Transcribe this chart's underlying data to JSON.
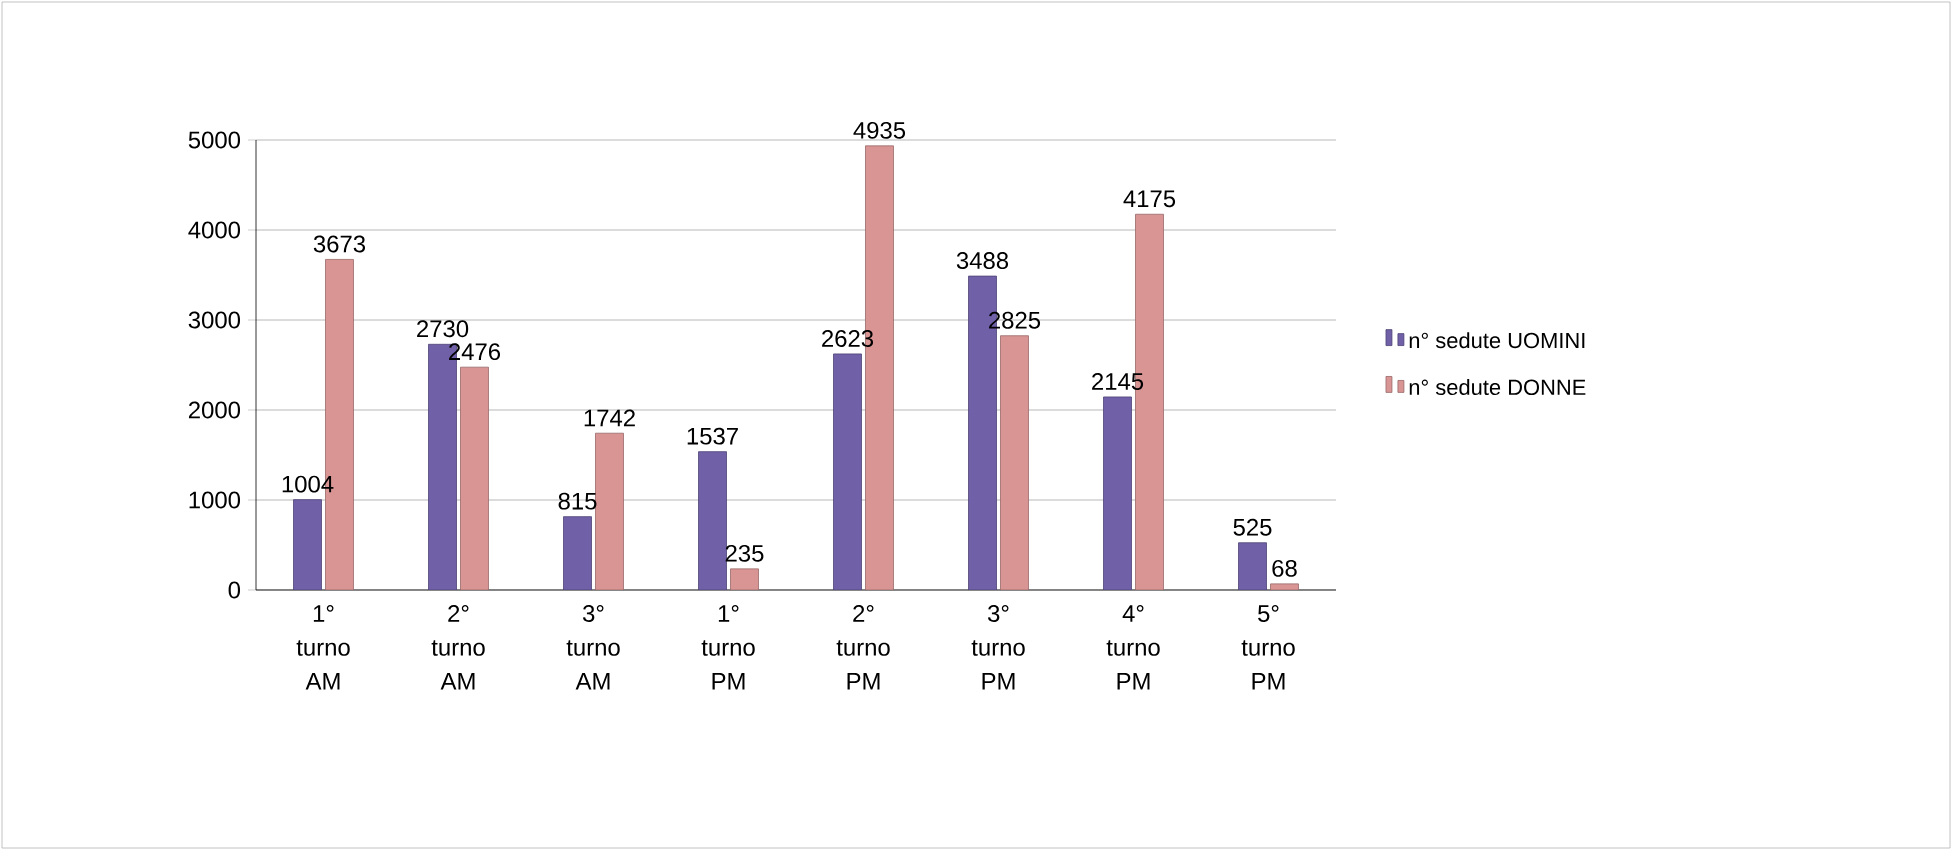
{
  "chart_data": {
    "type": "bar",
    "categories": [
      "1° turno AM",
      "2° turno AM",
      "3° turno AM",
      "1° turno PM",
      "2° turno PM",
      "3° turno PM",
      "4° turno PM",
      "5° turno PM"
    ],
    "series": [
      {
        "name": "n° sedute UOMINI",
        "color": "#7060a8",
        "values": [
          1004,
          2730,
          815,
          1537,
          2623,
          3488,
          2145,
          525
        ]
      },
      {
        "name": "n° sedute DONNE",
        "color": "#d99594",
        "values": [
          3673,
          2476,
          1742,
          235,
          4935,
          2825,
          4175,
          68
        ]
      }
    ],
    "ylim": [
      0,
      5000
    ],
    "yticks": [
      0,
      1000,
      2000,
      3000,
      4000,
      5000
    ],
    "grid": "y",
    "legend": "right",
    "data_labels": true
  }
}
